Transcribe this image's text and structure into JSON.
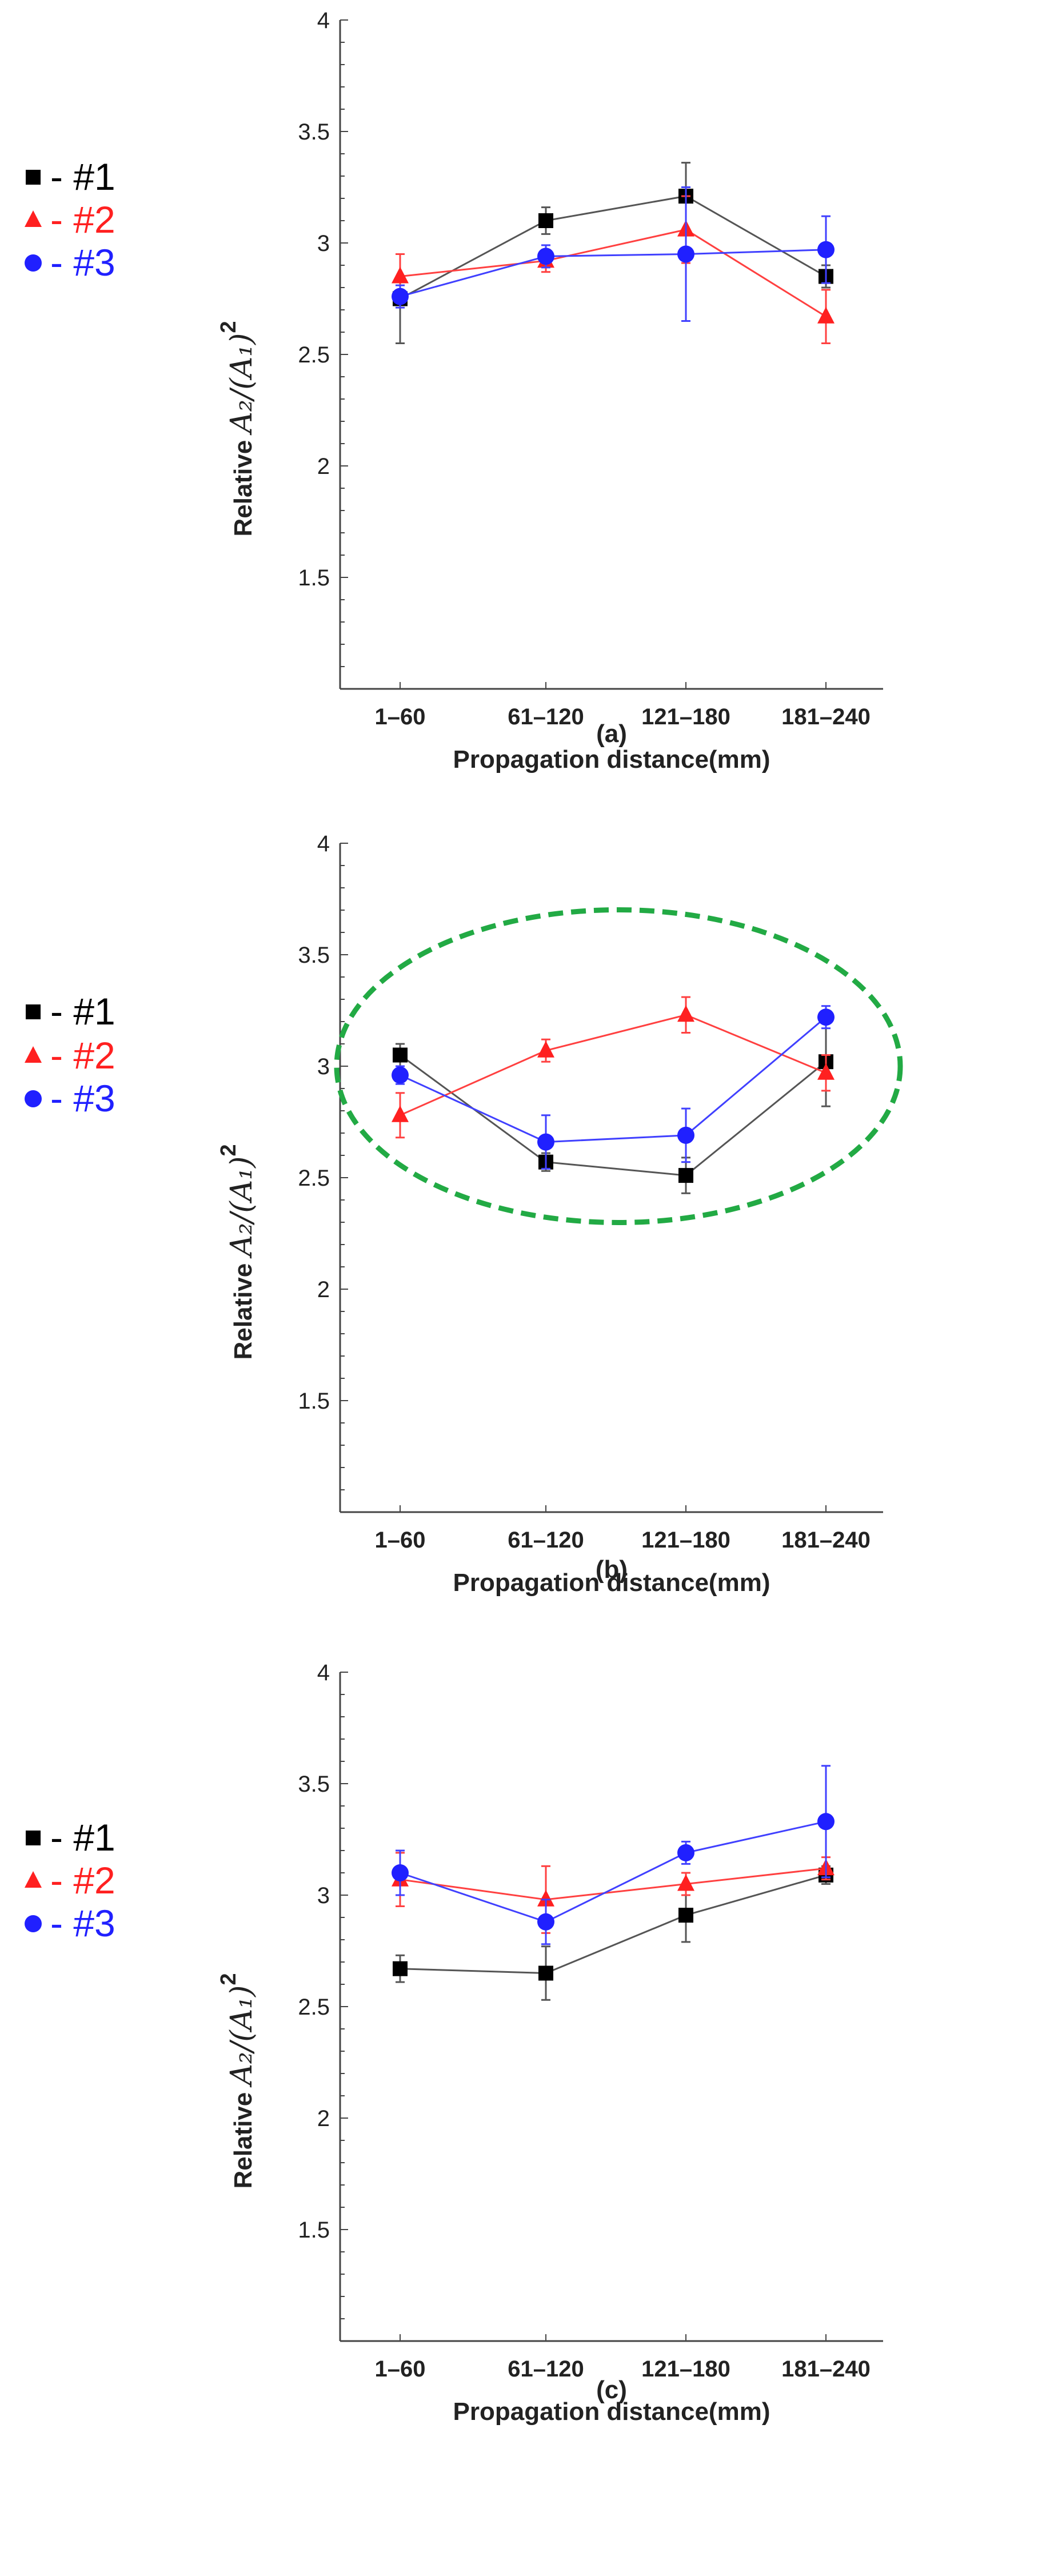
{
  "legend": [
    {
      "symbol": "square",
      "label": "- #1",
      "color": "#000000"
    },
    {
      "symbol": "triangle",
      "label": "- #2",
      "color": "#ff2020"
    },
    {
      "symbol": "circle",
      "label": "- #3",
      "color": "#2020ff"
    }
  ],
  "series_styles": [
    {
      "name": "#1",
      "marker": "square",
      "marker_color": "#000000",
      "line_color": "#555555"
    },
    {
      "name": "#2",
      "marker": "triangle",
      "marker_color": "#ff2020",
      "line_color": "#ff4040"
    },
    {
      "name": "#3",
      "marker": "circle",
      "marker_color": "#2020ff",
      "line_color": "#4040ff"
    }
  ],
  "highlight_color": "#22aa44",
  "chart_data": [
    {
      "type": "line",
      "caption": "(a)",
      "categories": [
        "1–60",
        "61–120",
        "121–180",
        "181–240"
      ],
      "xlabel": "Propagation distance(mm)",
      "ylabel_prefix": "Relative ",
      "ylabel_math": "A₂/(A₁)",
      "ylabel_sup": "2",
      "ylim": [
        1.0,
        4.0
      ],
      "yticks": [
        "1.5",
        "2",
        "2.5",
        "3",
        "3.5",
        "4"
      ],
      "highlight": false,
      "series": [
        {
          "name": "#1",
          "values": [
            2.75,
            3.1,
            3.21,
            2.85
          ],
          "errors": [
            0.2,
            0.06,
            0.15,
            0.05
          ]
        },
        {
          "name": "#2",
          "values": [
            2.85,
            2.92,
            3.06,
            2.67
          ],
          "errors": [
            0.1,
            0.05,
            0.15,
            0.12
          ]
        },
        {
          "name": "#3",
          "values": [
            2.76,
            2.94,
            2.95,
            2.97
          ],
          "errors": [
            0.05,
            0.05,
            0.3,
            0.15
          ]
        }
      ]
    },
    {
      "type": "line",
      "caption": "(b)",
      "categories": [
        "1–60",
        "61–120",
        "121–180",
        "181–240"
      ],
      "xlabel": "Propagation distance(mm)",
      "ylabel_prefix": "Relative ",
      "ylabel_math": "A₂/(A₁)",
      "ylabel_sup": "2",
      "ylim": [
        1.0,
        4.0
      ],
      "yticks": [
        "1.5",
        "2",
        "2.5",
        "3",
        "3.5",
        "4"
      ],
      "highlight": true,
      "series": [
        {
          "name": "#1",
          "values": [
            3.05,
            2.57,
            2.51,
            3.02
          ],
          "errors": [
            0.05,
            0.04,
            0.08,
            0.2
          ]
        },
        {
          "name": "#2",
          "values": [
            2.78,
            3.07,
            3.23,
            2.97
          ],
          "errors": [
            0.1,
            0.05,
            0.08,
            0.08
          ]
        },
        {
          "name": "#3",
          "values": [
            2.96,
            2.66,
            2.69,
            3.22
          ],
          "errors": [
            0.04,
            0.12,
            0.12,
            0.05
          ]
        }
      ]
    },
    {
      "type": "line",
      "caption": "(c)",
      "categories": [
        "1–60",
        "61–120",
        "121–180",
        "181–240"
      ],
      "xlabel": "Propagation distance(mm)",
      "ylabel_prefix": "Relative ",
      "ylabel_math": "A₂/(A₁)",
      "ylabel_sup": "2",
      "ylim": [
        1.0,
        4.0
      ],
      "yticks": [
        "1.5",
        "2",
        "2.5",
        "3",
        "3.5",
        "4"
      ],
      "highlight": false,
      "series": [
        {
          "name": "#1",
          "values": [
            2.67,
            2.65,
            2.91,
            3.09
          ],
          "errors": [
            0.06,
            0.12,
            0.12,
            0.04
          ]
        },
        {
          "name": "#2",
          "values": [
            3.07,
            2.98,
            3.05,
            3.12
          ],
          "errors": [
            0.12,
            0.15,
            0.05,
            0.05
          ]
        },
        {
          "name": "#3",
          "values": [
            3.1,
            2.88,
            3.19,
            3.33
          ],
          "errors": [
            0.1,
            0.1,
            0.05,
            0.25
          ]
        }
      ]
    }
  ]
}
